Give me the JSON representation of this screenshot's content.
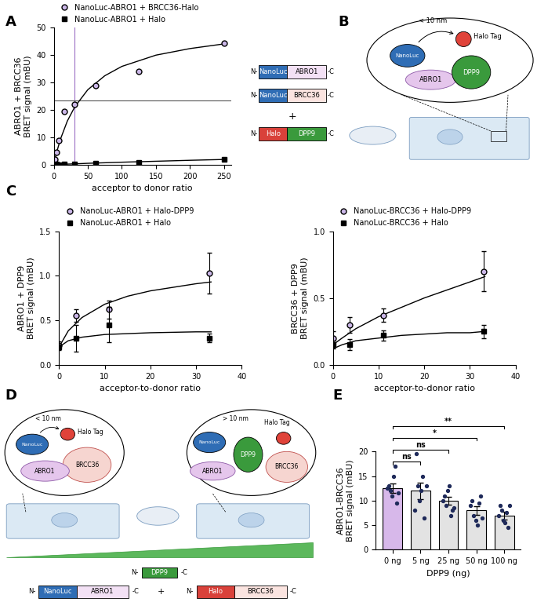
{
  "panel_labels": [
    "A",
    "B",
    "C",
    "D",
    "E"
  ],
  "chart_data": [
    {
      "type": "scatter",
      "xlabel": "acceptor to donor ratio",
      "ylabel": "ABRO1 + BRCC36\nBRET signal (mBU)",
      "xlim": [
        0,
        260
      ],
      "ylim": [
        0,
        50
      ],
      "xticks": [
        0,
        50,
        100,
        150,
        200,
        250
      ],
      "yticks": [
        0,
        10,
        20,
        30,
        40,
        50
      ],
      "legend": "top",
      "vline": 31,
      "hline": 23.5,
      "series": [
        {
          "name": "NanoLuc-ABRO1 + BRCC36-Halo",
          "color": "#cbb7e8",
          "marker": "circle",
          "x": [
            0,
            2,
            4,
            8,
            16,
            31,
            62,
            125,
            250
          ],
          "values": [
            0.5,
            2,
            4.5,
            9,
            19.5,
            22,
            29,
            34,
            44.5
          ],
          "fit": {
            "x": [
              0,
              5,
              10,
              20,
              31,
              50,
              75,
              100,
              150,
              200,
              250
            ],
            "values": [
              0,
              5.2,
              9.45,
              16.0,
              21.2,
              27.4,
              32.5,
              35.9,
              40.0,
              42.4,
              44.1
            ]
          }
        },
        {
          "name": "NanoLuc-ABRO1 + Halo",
          "color": "#000000",
          "marker": "square",
          "x": [
            0,
            4,
            8,
            16,
            31,
            62,
            125,
            250
          ],
          "values": [
            0,
            0.2,
            0.1,
            0.2,
            0.3,
            0.5,
            1,
            2
          ],
          "fit": {
            "x": [
              0,
              5,
              10,
              20,
              31,
              50,
              75,
              100,
              150,
              200,
              250
            ],
            "values": [
              0,
              0.1,
              0.15,
              0.3,
              0.4,
              0.6,
              0.8,
              1.0,
              1.35,
              1.7,
              2.0
            ]
          }
        }
      ]
    },
    {
      "type": "scatter",
      "xlabel": "acceptor-to-donor ratio",
      "ylabel": "ABRO1 + DPP9\nBRET signal (mBU)",
      "xlim": [
        0,
        40
      ],
      "ylim": [
        0,
        1.5
      ],
      "xticks": [
        0,
        10,
        20,
        30,
        40
      ],
      "yticks": [
        {
          "value": 0,
          "label": "0.0"
        },
        0.5,
        {
          "value": 1,
          "label": "1.0"
        },
        1.5
      ],
      "legend": "top",
      "series": [
        {
          "name": "NanoLuc-ABRO1 + Halo-DPP9",
          "color": "#cbb7e8",
          "marker": "circle",
          "x": [
            0,
            3.7,
            11,
            33
          ],
          "values": [
            0.22,
            0.55,
            0.62,
            1.03
          ],
          "errors": [
            0.04,
            0.07,
            0.1,
            0.23
          ],
          "fit": {
            "x": [
              0,
              2,
              5,
              10,
              15,
              20,
              25,
              30,
              33.3
            ],
            "values": [
              0.2,
              0.38,
              0.53,
              0.68,
              0.77,
              0.83,
              0.87,
              0.91,
              0.93
            ]
          }
        },
        {
          "name": "NanoLuc-ABRO1 + Halo",
          "color": "#000000",
          "marker": "square",
          "x": [
            0,
            3.7,
            11,
            33
          ],
          "values": [
            0.2,
            0.3,
            0.45,
            0.3
          ],
          "errors": [
            0.03,
            0.15,
            0.2,
            0.05
          ],
          "fit": {
            "x": [
              0,
              2,
              5,
              10,
              15,
              20,
              25,
              30,
              33.3
            ],
            "values": [
              0.2,
              0.27,
              0.31,
              0.34,
              0.35,
              0.36,
              0.365,
              0.37,
              0.37
            ]
          }
        }
      ]
    },
    {
      "type": "scatter",
      "xlabel": "acceptor-to-donor ratio",
      "ylabel": "BRCC36 + DPP9\nBRET signal (mBU)",
      "xlim": [
        0,
        40
      ],
      "ylim": [
        0,
        1.0
      ],
      "xticks": [
        0,
        10,
        20,
        30,
        40
      ],
      "yticks": [
        {
          "value": 0,
          "label": "0.0"
        },
        0.5,
        {
          "value": 1,
          "label": "1.0"
        }
      ],
      "legend": "top",
      "series": [
        {
          "name": "NanoLuc-BRCC36 + Halo-DPP9",
          "color": "#cbb7e8",
          "marker": "circle",
          "x": [
            0,
            3.7,
            11,
            33
          ],
          "values": [
            0.2,
            0.3,
            0.37,
            0.7
          ],
          "errors": [
            0.05,
            0.06,
            0.05,
            0.15
          ],
          "fit": {
            "x": [
              0,
              2,
              5,
              10,
              15,
              20,
              25,
              30,
              33.3
            ],
            "values": [
              0.15,
              0.2,
              0.27,
              0.36,
              0.43,
              0.5,
              0.56,
              0.62,
              0.66
            ]
          }
        },
        {
          "name": "NanoLuc-BRCC36 + Halo",
          "color": "#000000",
          "marker": "square",
          "x": [
            0,
            3.7,
            11,
            33
          ],
          "values": [
            0.15,
            0.15,
            0.22,
            0.25
          ],
          "errors": [
            0.03,
            0.04,
            0.04,
            0.05
          ],
          "fit": {
            "x": [
              0,
              2,
              5,
              10,
              15,
              20,
              25,
              30,
              33.3
            ],
            "values": [
              0.12,
              0.15,
              0.18,
              0.2,
              0.22,
              0.23,
              0.24,
              0.24,
              0.25
            ]
          }
        }
      ]
    },
    {
      "type": "bar",
      "xlabel": "DPP9 (ng)",
      "ylabel": "ABRO1-BRCC36\nBRET signal (mBU)",
      "categories": [
        "0 ng",
        "5 ng",
        "25 ng",
        "50 ng",
        "100 ng"
      ],
      "values": [
        12.5,
        12,
        10,
        8,
        7
      ],
      "errors": [
        1.0,
        1.7,
        0.8,
        0.9,
        0.8
      ],
      "colors": [
        "#d7b8ea",
        "#e3e3e3",
        "#e3e3e3",
        "#e3e3e3",
        "#e3e3e3"
      ],
      "ylim": [
        0,
        20
      ],
      "yticks": [
        0,
        5,
        10,
        15,
        20
      ],
      "points": {
        "color": "#1f2a5a",
        "values": [
          [
            12.5,
            13,
            12,
            11,
            15,
            17,
            9.5,
            11.5
          ],
          [
            8,
            19.5,
            13,
            10,
            12,
            15,
            6.5,
            13
          ],
          [
            10,
            11,
            9,
            12,
            13,
            7,
            8,
            8.5
          ],
          [
            9,
            10,
            7,
            6,
            5,
            9.5,
            11,
            6.5
          ],
          [
            7,
            9,
            8,
            6,
            5.5,
            7.5,
            4.5,
            9
          ]
        ]
      },
      "significance": [
        {
          "from": "0 ng",
          "to": "5 ng",
          "label": "ns"
        },
        {
          "from": "0 ng",
          "to": "25 ng",
          "label": "ns"
        },
        {
          "from": "0 ng",
          "to": "50 ng",
          "label": "*"
        },
        {
          "from": "0 ng",
          "to": "100 ng",
          "label": "**"
        }
      ]
    }
  ],
  "diagrams": {
    "A_constructs": {
      "plus": "+",
      "rows": [
        {
          "n": "N-",
          "c": "-C",
          "parts": [
            {
              "label": "NanoLuc",
              "color": "#2f6db5"
            },
            {
              "label": "ABRO1",
              "color": "#f3e1f5"
            }
          ]
        },
        {
          "n": "N-",
          "c": "-C",
          "parts": [
            {
              "label": "NanoLuc",
              "color": "#2f6db5"
            },
            {
              "label": "BRCC36",
              "color": "#fbe4e0"
            }
          ]
        },
        {
          "n": "N-",
          "c": "-C",
          "parts": [
            {
              "label": "Halo",
              "color": "#d9413a"
            },
            {
              "label": "DPP9",
              "color": "#3a9a3c"
            }
          ]
        }
      ]
    },
    "B": {
      "distance": "< 10 nm",
      "nanoluc": {
        "label": "NanoLuc",
        "color": "#2f6db5"
      },
      "halo": {
        "label": "Halo Tag",
        "color": "#e0433a"
      },
      "bait": {
        "label": "ABRO1",
        "color": "#e5c6ec"
      },
      "prey": {
        "label": "DPP9",
        "color": "#3a9a3c"
      }
    },
    "D": {
      "left": {
        "distance": "< 10 nm",
        "nanoluc": {
          "label": "NanoLuc",
          "color": "#2f6db5"
        },
        "halo": {
          "label": "Halo Tag",
          "color": "#e0433a"
        },
        "bait": {
          "label": "ABRO1",
          "color": "#e5c6ec"
        },
        "prey": {
          "label": "BRCC36",
          "color": "#f6d5d0"
        }
      },
      "right": {
        "distance": "> 10 nm",
        "nanoluc": {
          "label": "NanoLuc",
          "color": "#2f6db5"
        },
        "halo": {
          "label": "Halo Tag",
          "color": "#e0433a"
        },
        "bait": {
          "label": "ABRO1",
          "color": "#e5c6ec"
        },
        "prey": {
          "label": "BRCC36",
          "color": "#f6d5d0"
        },
        "competitor": {
          "label": "DPP9",
          "color": "#3a9a3c"
        }
      },
      "plus": "+",
      "competitor_construct": {
        "n": "N-",
        "c": "-C",
        "parts": [
          {
            "label": "DPP9",
            "color": "#3a9a3c"
          }
        ]
      },
      "constructs": [
        {
          "n": "N-",
          "c": "-C",
          "parts": [
            {
              "label": "NanoLuc",
              "color": "#2f6db5"
            },
            {
              "label": "ABRO1",
              "color": "#f3e1f5"
            }
          ]
        },
        {
          "n": "N-",
          "c": "-C",
          "parts": [
            {
              "label": "Halo",
              "color": "#d9413a"
            },
            {
              "label": "BRCC36",
              "color": "#fbe4e0"
            }
          ]
        }
      ]
    }
  }
}
